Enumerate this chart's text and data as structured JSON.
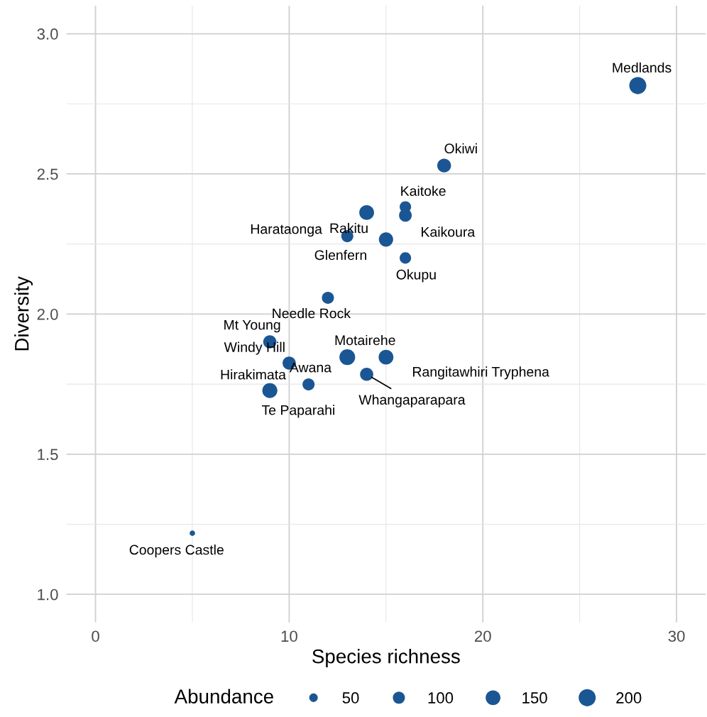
{
  "chart_data": {
    "type": "bubble",
    "xlabel": "Species richness",
    "ylabel": "Diversity",
    "legend_title": "Abundance",
    "x": [
      28,
      18,
      16,
      16,
      14,
      13,
      15,
      16,
      12,
      9,
      10,
      13,
      15,
      14,
      11,
      9,
      9,
      5
    ],
    "values": [
      2.815,
      2.53,
      2.382,
      2.352,
      2.362,
      2.278,
      2.266,
      2.2,
      2.058,
      1.901,
      1.825,
      1.846,
      1.846,
      1.785,
      1.749,
      1.727,
      1.727,
      1.218
    ],
    "sizes": [
      200,
      130,
      90,
      110,
      150,
      100,
      140,
      90,
      100,
      120,
      120,
      170,
      150,
      120,
      100,
      150,
      150,
      20
    ],
    "size_legend": [
      50,
      100,
      150,
      200
    ],
    "color": "#1b5694",
    "annotations": [
      {
        "text": "Medlands",
        "x": 28,
        "y": 2.815
      },
      {
        "text": "Okiwi",
        "x": 18,
        "y": 2.53
      },
      {
        "text": "Kaitoke",
        "x": 16,
        "y": 2.382
      },
      {
        "text": "Kaikoura",
        "x": 16,
        "y": 2.352
      },
      {
        "text": "Rakitu",
        "x": 14,
        "y": 2.362
      },
      {
        "text": "Harataonga",
        "x": 13,
        "y": 2.278
      },
      {
        "text": "Glenfern",
        "x": 15,
        "y": 2.266
      },
      {
        "text": "Okupu",
        "x": 16,
        "y": 2.2
      },
      {
        "text": "Needle Rock",
        "x": 12,
        "y": 2.058
      },
      {
        "text": "Mt Young",
        "x": 9,
        "y": 1.901
      },
      {
        "text": "Windy Hill",
        "x": 10,
        "y": 1.825
      },
      {
        "text": "Motairehe",
        "x": 13,
        "y": 1.846
      },
      {
        "text": "Rangitawhiri Tryphena",
        "x": 15,
        "y": 1.846
      },
      {
        "text": "Whangaparapara",
        "x": 14,
        "y": 1.785
      },
      {
        "text": "Awana",
        "x": 11,
        "y": 1.749
      },
      {
        "text": "Hirakimata",
        "x": 9,
        "y": 1.727
      },
      {
        "text": "Te Paparahi",
        "x": 9,
        "y": 1.727
      },
      {
        "text": "Coopers Castle",
        "x": 5,
        "y": 1.218
      }
    ],
    "xlim": [
      -1.5,
      31.5
    ],
    "ylim": [
      0.9,
      3.1
    ],
    "xticks": [
      0,
      {
        "value": 5,
        "label": null
      },
      10,
      {
        "value": 15,
        "label": null
      },
      20,
      {
        "value": 25,
        "label": null
      },
      30
    ],
    "yticks": [
      {
        "value": 1,
        "label": "1.0"
      },
      {
        "value": 1.25,
        "label": null
      },
      1.5,
      {
        "value": 1.75,
        "label": null
      },
      {
        "value": 2,
        "label": "2.0"
      },
      {
        "value": 2.25,
        "label": null
      },
      2.5,
      {
        "value": 2.75,
        "label": null
      },
      {
        "value": 3,
        "label": "3.0"
      }
    ],
    "grid": true,
    "marker": "circle"
  }
}
